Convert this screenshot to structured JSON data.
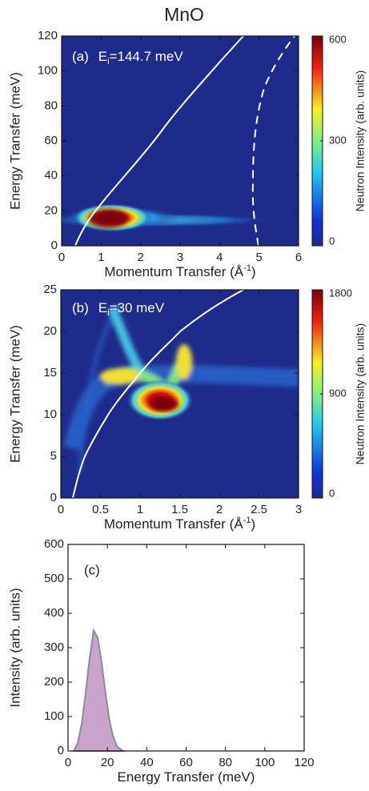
{
  "chart_data": [
    {
      "type": "heatmap",
      "title": "MnO",
      "panel": "(a)",
      "ei_symbol": "E",
      "ei_subscript": "i",
      "ei_value": "=144.7 meV",
      "xlabel": "Momentum Transfer (Å",
      "xlabel_sup": "-1",
      "xlabel_end": ")",
      "ylabel": "Energy Transfer (meV)",
      "colorbar_label": "Neutron Intensity (arb. units)",
      "xlim": [
        0,
        6
      ],
      "xticks": [
        0,
        1,
        2,
        3,
        4,
        5,
        6
      ],
      "ylim": [
        0,
        120
      ],
      "yticks": [
        0,
        20,
        40,
        60,
        80,
        100,
        120
      ],
      "clim": [
        0,
        600
      ],
      "cticks": [
        0,
        300,
        600
      ]
    },
    {
      "type": "heatmap",
      "panel": "(b)",
      "ei_symbol": "E",
      "ei_subscript": "i",
      "ei_value": "=30 meV",
      "xlabel": "Momentum Transfer (Å",
      "xlabel_sup": "-1",
      "xlabel_end": ")",
      "ylabel": "Energy Transfer (meV)",
      "colorbar_label": "Neutron Intensity (arb. units)",
      "xlim": [
        0,
        3
      ],
      "xticks": [
        0,
        0.5,
        1,
        1.5,
        2,
        2.5,
        3
      ],
      "ylim": [
        0,
        25
      ],
      "yticks": [
        0,
        5,
        10,
        15,
        20,
        25
      ],
      "clim": [
        0,
        1800
      ],
      "cticks": [
        0,
        900,
        1800
      ]
    },
    {
      "type": "area",
      "panel": "(c)",
      "xlabel": "Energy Transfer (meV)",
      "ylabel": "Intensity (arb. units)",
      "xlim": [
        0,
        120
      ],
      "xticks": [
        0,
        20,
        40,
        60,
        80,
        100,
        120
      ],
      "ylim": [
        0,
        600
      ],
      "yticks": [
        0,
        100,
        200,
        300,
        400,
        500,
        600
      ],
      "color": "#c9a3cc",
      "x": [
        3,
        5,
        7,
        9,
        11,
        13,
        15,
        17,
        19,
        21,
        23,
        25,
        28
      ],
      "values": [
        0,
        25,
        80,
        170,
        270,
        350,
        330,
        260,
        170,
        90,
        40,
        12,
        0
      ]
    }
  ]
}
